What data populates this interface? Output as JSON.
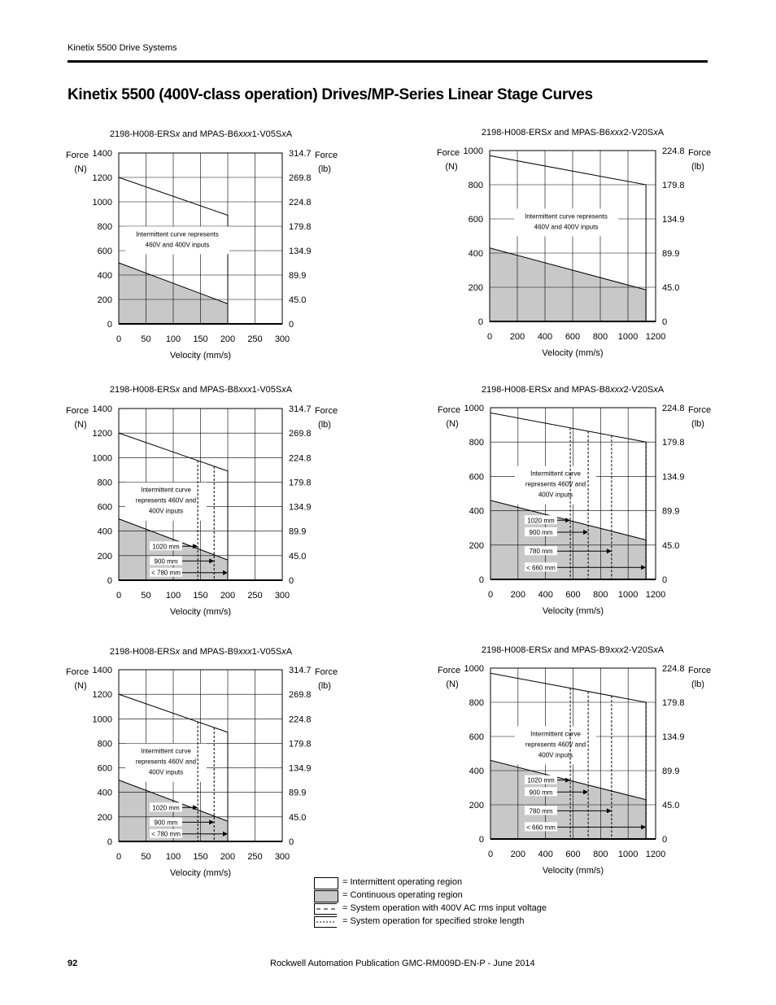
{
  "header": {
    "running_title": "Kinetix 5500 Drive Systems",
    "page_title": "Kinetix 5500 (400V-class operation) Drives/MP-Series Linear Stage Curves"
  },
  "footer": {
    "page_number": "92",
    "publication": "Rockwell Automation Publication GMC-RM009D-EN-P - June 2014"
  },
  "legend": [
    {
      "style": "box",
      "label": "= Intermittent operating region"
    },
    {
      "style": "gray",
      "label": "= Continuous operating region"
    },
    {
      "style": "longdash",
      "label": "= System operation with 400V AC rms input voltage"
    },
    {
      "style": "shortdash",
      "label": "= System operation for specified stroke length"
    }
  ],
  "chart_data": [
    {
      "type": "area",
      "position": "left-1",
      "title": "2198-H008-ERSx and MPAS-B6xxx1-V05SxA",
      "title_parts": [
        "2198-H008-ERS",
        "x",
        " and MPAS-B6",
        "xxx",
        "1-V05S",
        "x",
        "A"
      ],
      "ylabel_left": [
        "Force",
        "(N)"
      ],
      "ylabel_right": [
        "Force",
        "(lb)"
      ],
      "xlabel": "Velocity (mm/s)",
      "xlim": [
        0,
        300
      ],
      "ylim": [
        0,
        1400
      ],
      "x_ticks": [
        0,
        50,
        100,
        150,
        200,
        250,
        300
      ],
      "y_ticks": [
        0,
        200,
        400,
        600,
        800,
        1000,
        1200,
        1400
      ],
      "y_right_ticks": [
        "0",
        "45.0",
        "89.9",
        "134.9",
        "179.8",
        "224.8",
        "269.8",
        "314.7"
      ],
      "intermittent": [
        [
          0,
          1200
        ],
        [
          200,
          890
        ]
      ],
      "continuous": [
        [
          0,
          500
        ],
        [
          200,
          165
        ]
      ],
      "annotation": [
        "Intermittent curve represents",
        "460V and 400V inputs"
      ],
      "stroke_limits": []
    },
    {
      "type": "area",
      "position": "right-1",
      "title": "2198-H008-ERSx and MPAS-B6xxx2-V20SxA",
      "title_parts": [
        "2198-H008-ERS",
        "x",
        " and MPAS-B6",
        "xxx",
        "2-V20S",
        "x",
        "A"
      ],
      "ylabel_left": [
        "Force",
        "(N)"
      ],
      "ylabel_right": [
        "Force",
        "(lb)"
      ],
      "xlabel": "Velocity (mm/s)",
      "xlim": [
        0,
        1200
      ],
      "ylim": [
        0,
        1000
      ],
      "x_ticks": [
        0,
        200,
        400,
        600,
        800,
        1000,
        1200
      ],
      "y_ticks": [
        0,
        200,
        400,
        600,
        800,
        1000
      ],
      "y_right_ticks": [
        "0",
        "45.0",
        "89.9",
        "134.9",
        "179.8",
        "224.8"
      ],
      "intermittent": [
        [
          0,
          970
        ],
        [
          1130,
          800
        ]
      ],
      "continuous": [
        [
          0,
          430
        ],
        [
          1130,
          185
        ]
      ],
      "annotation": [
        "Intermittent curve represents",
        "460V and 400V inputs"
      ],
      "stroke_limits": []
    },
    {
      "type": "area",
      "position": "left-2",
      "title": "2198-H008-ERSx and MPAS-B8xxx1-V05SxA",
      "title_parts": [
        "2198-H008-ERS",
        "x",
        " and MPAS-B8",
        "xxx",
        "1-V05S",
        "x",
        "A"
      ],
      "ylabel_left": [
        "Force",
        "(N)"
      ],
      "ylabel_right": [
        "Force",
        "(lb)"
      ],
      "xlabel": "Velocity (mm/s)",
      "xlim": [
        0,
        300
      ],
      "ylim": [
        0,
        1400
      ],
      "x_ticks": [
        0,
        50,
        100,
        150,
        200,
        250,
        300
      ],
      "y_ticks": [
        0,
        200,
        400,
        600,
        800,
        1000,
        1200,
        1400
      ],
      "y_right_ticks": [
        "0",
        "45.0",
        "89.9",
        "134.9",
        "179.8",
        "224.8",
        "269.8",
        "314.7"
      ],
      "intermittent": [
        [
          0,
          1200
        ],
        [
          200,
          890
        ]
      ],
      "continuous": [
        [
          0,
          500
        ],
        [
          200,
          165
        ]
      ],
      "annotation": [
        "Intermittent curve",
        "represents 460V and",
        "400V inputs"
      ],
      "stroke_limits": [
        {
          "label": "1020 mm",
          "x": 145,
          "y": 270
        },
        {
          "label": "900 mm",
          "x": 175,
          "y": 150
        },
        {
          "label": "< 780 mm",
          "x": 200,
          "y": 55
        }
      ]
    },
    {
      "type": "area",
      "position": "right-2",
      "title": "2198-H008-ERSx and MPAS-B8xxx2-V20SxA",
      "title_parts": [
        "2198-H008-ERS",
        "x",
        " and MPAS-B8",
        "xxx",
        "2-V20S",
        "x",
        "A"
      ],
      "ylabel_left": [
        "Force",
        "(N)"
      ],
      "ylabel_right": [
        "Force",
        "(lb)"
      ],
      "xlabel": "Velocity (mm/s)",
      "xlim": [
        0,
        1200
      ],
      "ylim": [
        0,
        1000
      ],
      "x_ticks": [
        0,
        200,
        400,
        600,
        800,
        1000,
        1200
      ],
      "y_ticks": [
        0,
        200,
        400,
        600,
        800,
        1000
      ],
      "y_right_ticks": [
        "0",
        "45.0",
        "89.9",
        "134.9",
        "179.8",
        "224.8"
      ],
      "intermittent": [
        [
          0,
          970
        ],
        [
          1130,
          800
        ]
      ],
      "continuous": [
        [
          0,
          460
        ],
        [
          1130,
          230
        ]
      ],
      "annotation": [
        "Intermittent curve",
        "represents 460V and",
        "400V inputs"
      ],
      "stroke_limits": [
        {
          "label": "1020 mm",
          "x": 580,
          "y": 340
        },
        {
          "label": "900 mm",
          "x": 710,
          "y": 270
        },
        {
          "label": "780 mm",
          "x": 880,
          "y": 160
        },
        {
          "label": "< 660 mm",
          "x": 1130,
          "y": 65
        }
      ]
    },
    {
      "type": "area",
      "position": "left-3",
      "title": "2198-H008-ERSx and MPAS-B9xxx1-V05SxA",
      "title_parts": [
        "2198-H008-ERS",
        "x",
        " and MPAS-B9",
        "xxx",
        "1-V05S",
        "x",
        "A"
      ],
      "ylabel_left": [
        "Force",
        "(N)"
      ],
      "ylabel_right": [
        "Force",
        "(lb)"
      ],
      "xlabel": "Velocity (mm/s)",
      "xlim": [
        0,
        300
      ],
      "ylim": [
        0,
        1400
      ],
      "x_ticks": [
        0,
        50,
        100,
        150,
        200,
        250,
        300
      ],
      "y_ticks": [
        0,
        200,
        400,
        600,
        800,
        1000,
        1200,
        1400
      ],
      "y_right_ticks": [
        "0",
        "45.0",
        "89.9",
        "134.9",
        "179.8",
        "224.8",
        "269.8",
        "314.7"
      ],
      "intermittent": [
        [
          0,
          1200
        ],
        [
          200,
          890
        ]
      ],
      "continuous": [
        [
          0,
          500
        ],
        [
          200,
          165
        ]
      ],
      "annotation": [
        "Intermittent curve",
        "represents 460V and",
        "400V inputs"
      ],
      "stroke_limits": [
        {
          "label": "1020 mm",
          "x": 145,
          "y": 270
        },
        {
          "label": "900 mm",
          "x": 175,
          "y": 150
        },
        {
          "label": "< 780 mm",
          "x": 200,
          "y": 55
        }
      ]
    },
    {
      "type": "area",
      "position": "right-3",
      "title": "2198-H008-ERSx and MPAS-B9xxx2-V20SxA",
      "title_parts": [
        "2198-H008-ERS",
        "x",
        " and MPAS-B9",
        "xxx",
        "2-V20S",
        "x",
        "A"
      ],
      "ylabel_left": [
        "Force",
        "(N)"
      ],
      "ylabel_right": [
        "Force",
        "(lb)"
      ],
      "xlabel": "Velocity (mm/s)",
      "xlim": [
        0,
        1200
      ],
      "ylim": [
        0,
        1000
      ],
      "x_ticks": [
        0,
        200,
        400,
        600,
        800,
        1000,
        1200
      ],
      "y_ticks": [
        0,
        200,
        400,
        600,
        800,
        1000
      ],
      "y_right_ticks": [
        "0",
        "45.0",
        "89.9",
        "134.9",
        "179.8",
        "224.8"
      ],
      "intermittent": [
        [
          0,
          970
        ],
        [
          1130,
          800
        ]
      ],
      "continuous": [
        [
          0,
          460
        ],
        [
          1130,
          230
        ]
      ],
      "annotation": [
        "Intermittent curve",
        "represents 460V and",
        "400V inputs"
      ],
      "stroke_limits": [
        {
          "label": "1020 mm",
          "x": 580,
          "y": 340
        },
        {
          "label": "900 mm",
          "x": 710,
          "y": 270
        },
        {
          "label": "780 mm",
          "x": 880,
          "y": 160
        },
        {
          "label": "< 660 mm",
          "x": 1130,
          "y": 65
        }
      ]
    }
  ]
}
